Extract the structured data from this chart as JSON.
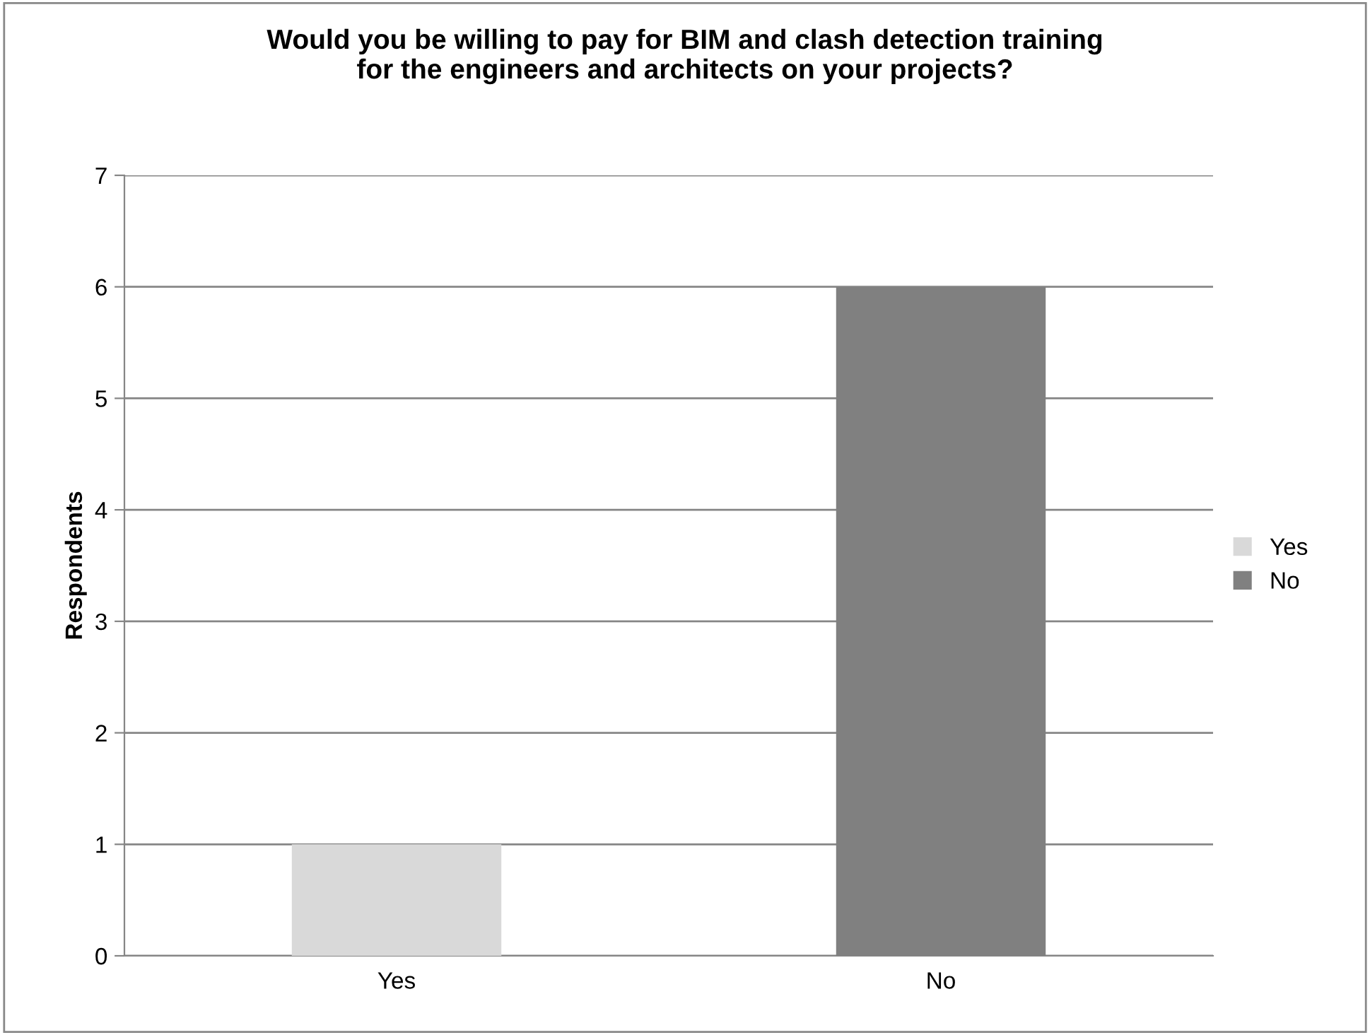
{
  "chart_data": {
    "type": "bar",
    "title": "Would you be willing to pay for BIM and clash detection training\nfor the engineers and architects on your projects?",
    "ylabel": "Respondents",
    "categories": [
      "Yes",
      "No"
    ],
    "series": [
      {
        "name": "Yes",
        "color": "#d9d9d9",
        "values": [
          1,
          null
        ]
      },
      {
        "name": "No",
        "color": "#808080",
        "values": [
          null,
          6
        ]
      }
    ],
    "ylim": [
      0,
      7
    ],
    "yticks": [
      0,
      1,
      2,
      3,
      4,
      5,
      6,
      7
    ],
    "grid": "y",
    "legend": "right"
  }
}
